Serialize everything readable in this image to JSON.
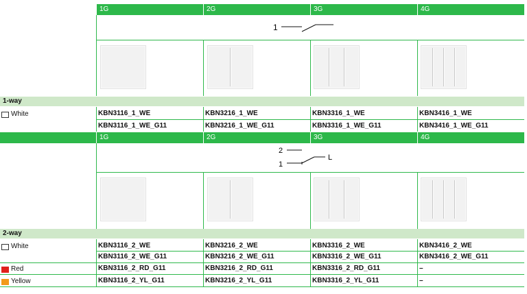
{
  "gangs": [
    "1G",
    "2G",
    "3G",
    "4G"
  ],
  "section1": {
    "diagram_labels": [
      "1"
    ],
    "way_label": "1-way",
    "rows": [
      {
        "color": "White",
        "swatch": "#ffffff",
        "codes": [
          "KBN3116_1_WE",
          "KBN3216_1_WE",
          "KBN3316_1_WE",
          "KBN3416_1_WE"
        ]
      },
      {
        "color": "",
        "swatch": "",
        "codes": [
          "KBN3116_1_WE_G11",
          "KBN3216_1_WE_G11",
          "KBN3316_1_WE_G11",
          "KBN3416_1_WE_G11"
        ]
      }
    ]
  },
  "section2": {
    "diagram_labels": [
      "2",
      "1",
      "L"
    ],
    "way_label": "2-way",
    "rows": [
      {
        "color": "White",
        "swatch": "#ffffff",
        "codes": [
          "KBN3116_2_WE",
          "KBN3216_2_WE",
          "KBN3316_2_WE",
          "KBN3416_2_WE"
        ]
      },
      {
        "color": "",
        "swatch": "",
        "codes": [
          "KBN3116_2_WE_G11",
          "KBN3216_2_WE_G11",
          "KBN3316_2_WE_G11",
          "KBN3416_2_WE_G11"
        ]
      },
      {
        "color": "Red",
        "swatch": "#e0201b",
        "codes": [
          "KBN3116_2_RD_G11",
          "KBN3216_2_RD_G11",
          "KBN3316_2_RD_G11",
          "–"
        ]
      },
      {
        "color": "Yellow",
        "swatch": "#f29a1a",
        "codes": [
          "KBN3116_2_YL_G11",
          "KBN3216_2_YL_G11",
          "KBN3316_2_YL_G11",
          "–"
        ]
      }
    ]
  }
}
